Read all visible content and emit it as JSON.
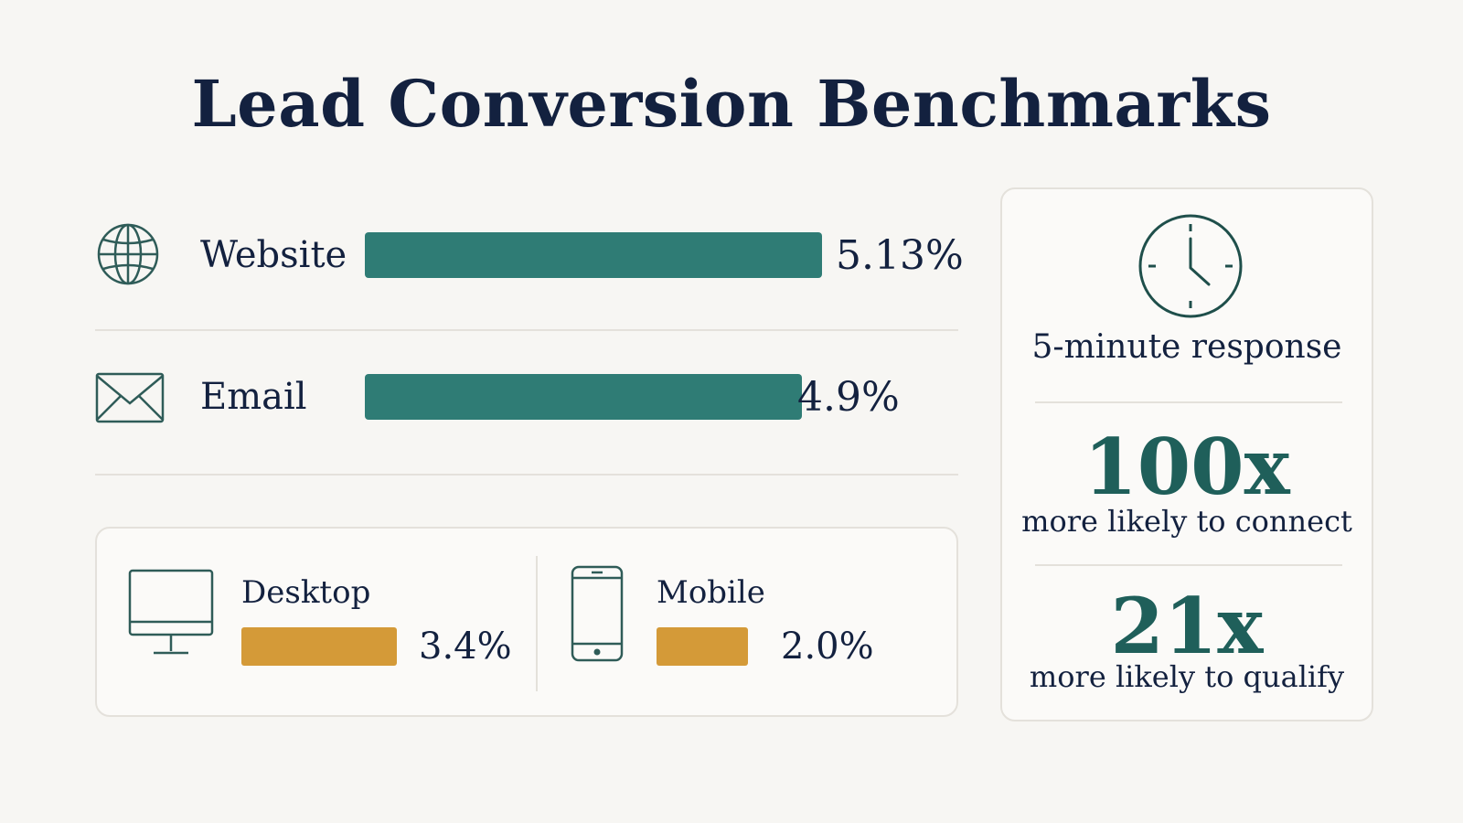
{
  "title": "Lead Conversion Benchmarks",
  "colors": {
    "channel_bar": "#2f7c75",
    "device_bar": "#d49a38",
    "text": "#13213f",
    "stat_number": "#1f5f5a"
  },
  "channels": [
    {
      "icon": "globe-icon",
      "label": "Website",
      "value_label": "5.13%",
      "value": 5.13
    },
    {
      "icon": "envelope-icon",
      "label": "Email",
      "value_label": "4.9%",
      "value": 4.9
    }
  ],
  "devices": [
    {
      "icon": "desktop-monitor-icon",
      "label": "Desktop",
      "value_label": "3.4%",
      "value": 3.4
    },
    {
      "icon": "mobile-phone-icon",
      "label": "Mobile",
      "value_label": "2.0%",
      "value": 2.0
    }
  ],
  "stats": {
    "icon": "clock-icon",
    "response_label": "5-minute response",
    "items": [
      {
        "number": "100x",
        "text": "more likely to connect"
      },
      {
        "number": "21x",
        "text": "more likely to qualify"
      }
    ]
  },
  "chart_data": {
    "type": "bar",
    "title": "Lead Conversion Benchmarks",
    "categories": [
      "Website",
      "Email",
      "Desktop",
      "Mobile"
    ],
    "values": [
      5.13,
      4.9,
      3.4,
      2.0
    ],
    "unit": "%"
  }
}
